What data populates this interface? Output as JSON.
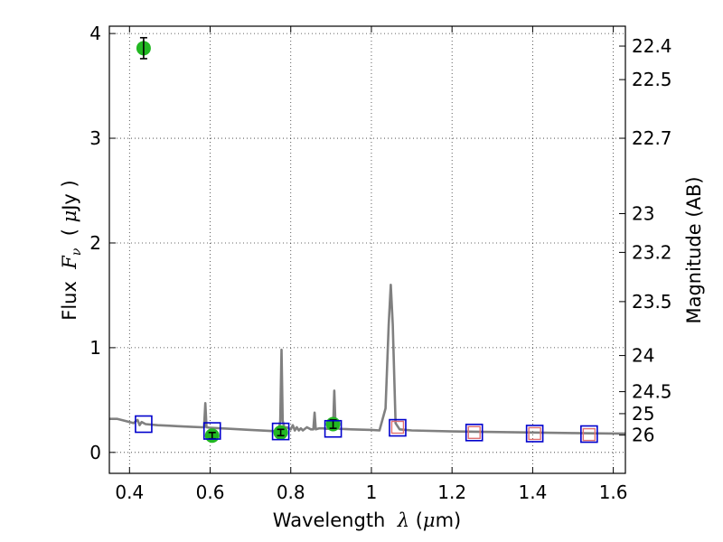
{
  "chart_data": {
    "type": "scatter",
    "title": "",
    "xlabel": "Wavelength  λ (μm)",
    "ylabel": "Flux  F_ν  ( μJy )",
    "ylabel_right": "Magnitude (AB)",
    "xlim": [
      0.35,
      1.63
    ],
    "ylim": [
      -0.2,
      4.07
    ],
    "grid": true,
    "x_ticks": [
      0.4,
      0.6,
      0.8,
      1.0,
      1.2,
      1.4,
      1.6
    ],
    "x_tick_labels": [
      "0.4",
      "0.6",
      "0.8",
      "1",
      "1.2",
      "1.4",
      "1.6"
    ],
    "y_ticks": [
      0,
      1,
      2,
      3,
      4
    ],
    "y_tick_labels": [
      "0",
      "1",
      "2",
      "3",
      "4"
    ],
    "right_ticks_flux": [
      3.88,
      3.56,
      3.0,
      2.28,
      1.91,
      1.44,
      0.925,
      0.58,
      0.37,
      0.165
    ],
    "right_tick_labels": [
      "22.4",
      "22.5",
      "22.7",
      "23",
      "23.2",
      "23.5",
      "24",
      "24.5",
      "25",
      "26"
    ],
    "colors": {
      "model": "#808080",
      "observed": "#22b822",
      "model_photometry": "#0000cc",
      "ir_photometry": "#e07070"
    },
    "series": [
      {
        "style": "line",
        "color": "#808080",
        "points": [
          [
            0.35,
            0.32
          ],
          [
            0.37,
            0.32
          ],
          [
            0.39,
            0.3
          ],
          [
            0.41,
            0.28
          ],
          [
            0.42,
            0.31
          ],
          [
            0.425,
            0.26
          ],
          [
            0.43,
            0.29
          ],
          [
            0.44,
            0.27
          ],
          [
            0.47,
            0.26
          ],
          [
            0.5,
            0.255
          ],
          [
            0.52,
            0.25
          ],
          [
            0.55,
            0.245
          ],
          [
            0.58,
            0.24
          ],
          [
            0.585,
            0.24
          ],
          [
            0.588,
            0.47
          ],
          [
            0.591,
            0.24
          ],
          [
            0.6,
            0.235
          ],
          [
            0.65,
            0.225
          ],
          [
            0.7,
            0.215
          ],
          [
            0.75,
            0.205
          ],
          [
            0.77,
            0.2
          ],
          [
            0.774,
            0.3
          ],
          [
            0.777,
            0.98
          ],
          [
            0.78,
            0.3
          ],
          [
            0.784,
            0.24
          ],
          [
            0.79,
            0.24
          ],
          [
            0.8,
            0.22
          ],
          [
            0.805,
            0.26
          ],
          [
            0.81,
            0.21
          ],
          [
            0.815,
            0.24
          ],
          [
            0.82,
            0.21
          ],
          [
            0.825,
            0.23
          ],
          [
            0.83,
            0.21
          ],
          [
            0.84,
            0.24
          ],
          [
            0.85,
            0.22
          ],
          [
            0.856,
            0.22
          ],
          [
            0.859,
            0.38
          ],
          [
            0.862,
            0.22
          ],
          [
            0.87,
            0.23
          ],
          [
            0.88,
            0.23
          ],
          [
            0.89,
            0.225
          ],
          [
            0.9,
            0.23
          ],
          [
            0.905,
            0.24
          ],
          [
            0.908,
            0.59
          ],
          [
            0.911,
            0.24
          ],
          [
            0.92,
            0.225
          ],
          [
            0.95,
            0.22
          ],
          [
            1.0,
            0.215
          ],
          [
            1.02,
            0.21
          ],
          [
            1.035,
            0.42
          ],
          [
            1.043,
            1.22
          ],
          [
            1.048,
            1.6
          ],
          [
            1.053,
            1.22
          ],
          [
            1.06,
            0.28
          ],
          [
            1.07,
            0.22
          ],
          [
            1.1,
            0.21
          ],
          [
            1.2,
            0.2
          ],
          [
            1.3,
            0.195
          ],
          [
            1.4,
            0.19
          ],
          [
            1.5,
            0.185
          ],
          [
            1.6,
            0.18
          ],
          [
            1.63,
            0.18
          ]
        ]
      },
      {
        "style": "points",
        "marker": "circle",
        "color": "#22b822",
        "x": [
          0.435,
          0.605,
          0.775,
          0.905
        ],
        "y": [
          3.86,
          0.16,
          0.19,
          0.27
        ],
        "yerr": [
          0.1,
          0.03,
          0.03,
          0.04
        ]
      },
      {
        "style": "points",
        "marker": "square",
        "color": "#0000cc",
        "x": [
          0.435,
          0.605,
          0.775,
          0.905,
          1.065,
          1.255,
          1.405,
          1.54
        ],
        "y": [
          0.27,
          0.205,
          0.2,
          0.225,
          0.235,
          0.19,
          0.18,
          0.175
        ]
      },
      {
        "style": "points",
        "marker": "square",
        "color": "#e07070",
        "x": [
          1.065,
          1.255,
          1.405,
          1.54
        ],
        "y": [
          0.24,
          0.19,
          0.18,
          0.17
        ]
      }
    ]
  }
}
